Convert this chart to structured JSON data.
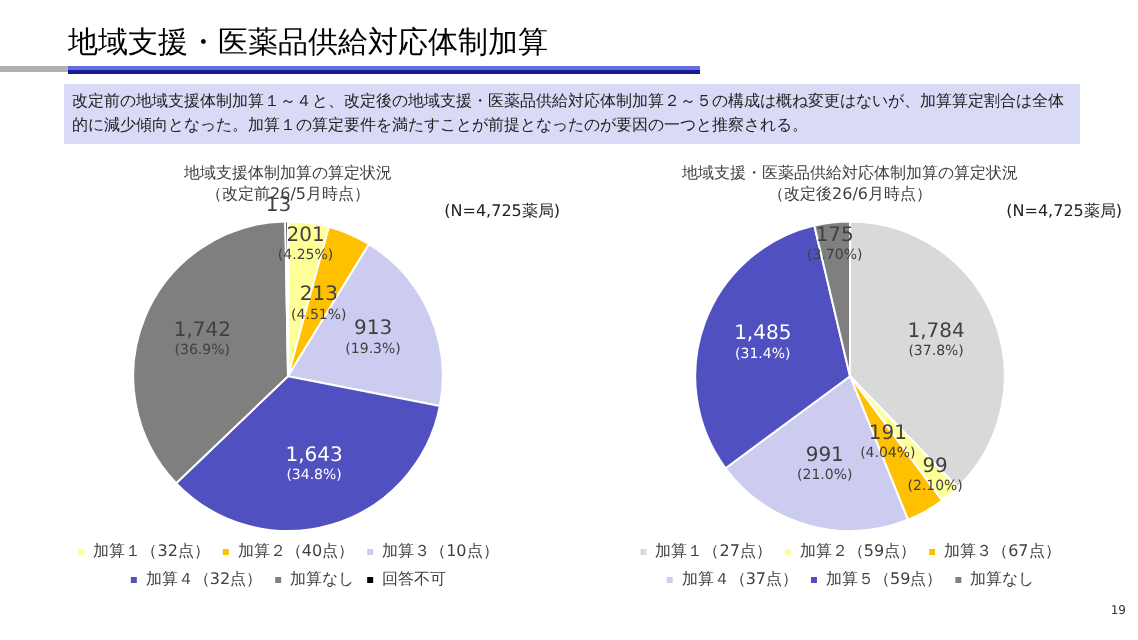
{
  "chart_data": [
    {
      "type": "pie",
      "title": "地域支援体制加算の算定状況",
      "subtitle": "（改定前26/5月時点）",
      "annotations": [
        "地域支援・医薬品供給対応体制加算",
        "改定前の地域支援体制加算１～４と、改定後の地域支援・医薬品供給対応体制加算２～５の構成は概ね変更はないが、加算算定割合は全体的に減少傾向となった。加算１の算定要件を満たすことが前提となったのが要因の一つと推察される。",
        "(N=4,725薬局)"
      ],
      "categories": [
        "加算１（32点）",
        "加算２（40点）",
        "加算３（10点）",
        "加算４（32点）",
        "加算なし",
        "回答不可"
      ],
      "values": [
        201,
        213,
        913,
        1643,
        1742,
        13
      ],
      "colors": [
        "#ffff99",
        "#ffc000",
        "#ccccf0",
        "#5050c0",
        "#7f7f7f",
        "#000000"
      ],
      "value_labels": [
        "201 (4.25%)",
        "213 (4.51%)",
        "913 (19.3%)",
        "1,643 (34.8%)",
        "1,742 (36.9%)",
        "13"
      ],
      "legend": "bottom"
    },
    {
      "type": "pie",
      "title": "地域支援・医薬品供給対応体制加算の算定状況",
      "subtitle": "（改定後26/6月時点）",
      "annotations": [
        "(N=4,725薬局)",
        "19"
      ],
      "categories": [
        "加算１（27点）",
        "加算２（59点）",
        "加算３（67点）",
        "加算４（37点）",
        "加算５（59点）",
        "加算なし"
      ],
      "values": [
        1784,
        99,
        191,
        991,
        1485,
        175
      ],
      "colors": [
        "#d9d9d9",
        "#ffff99",
        "#ffc000",
        "#ccccf0",
        "#5050c0",
        "#7f7f7f"
      ],
      "value_labels": [
        "1,784 (37.8%)",
        "99 (2.10%)",
        "191 (4.04%)",
        "991 (21.0%)",
        "1,485 (31.4%)",
        "175 (3.70%)"
      ],
      "legend": "bottom"
    }
  ]
}
